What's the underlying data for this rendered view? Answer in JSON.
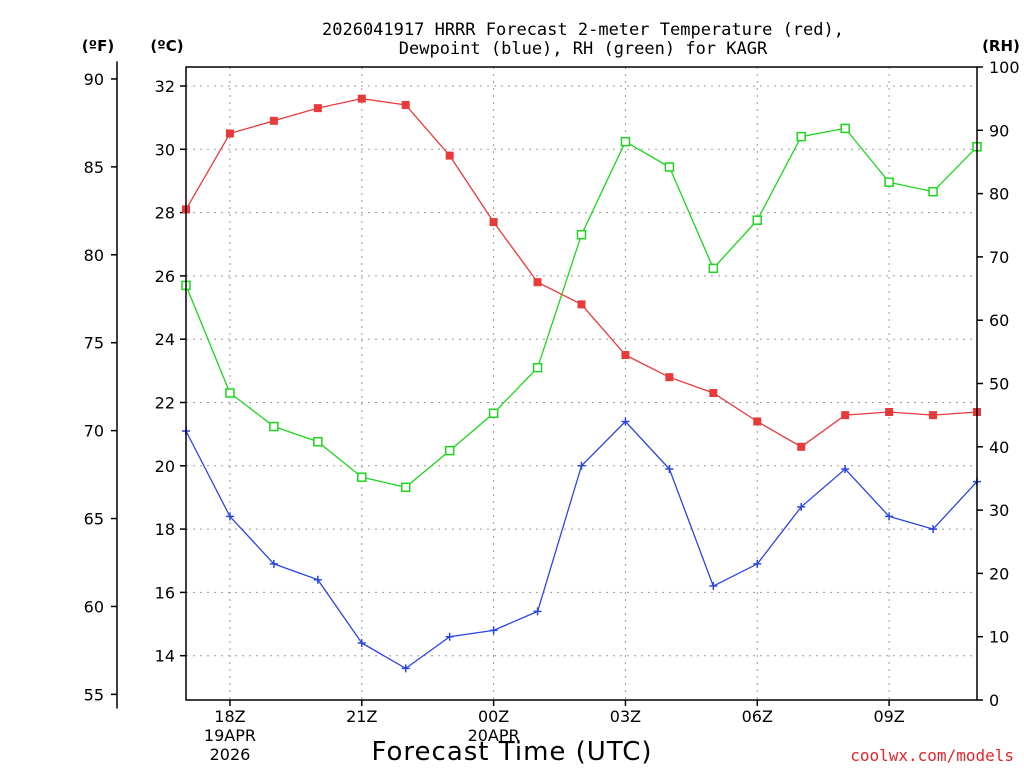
{
  "chart_data": {
    "type": "line",
    "title_line1": "2026041917 HRRR Forecast 2-meter Temperature (red),",
    "title_line2": "Dewpoint (blue), RH (green) for KAGR",
    "unit_f": "(ºF)",
    "unit_c": "(ºC)",
    "unit_rh": "(RH)",
    "xlabel": "Forecast Time (UTC)",
    "credit": "coolwx.com/models",
    "x_hours": [
      17,
      18,
      19,
      20,
      21,
      22,
      23,
      24,
      25,
      26,
      27,
      28,
      29,
      30,
      31,
      32,
      33,
      34,
      35
    ],
    "x_range": [
      17,
      35
    ],
    "x_ticks": [
      {
        "hour": 18,
        "label": "18Z",
        "label2": "19APR",
        "label3": "2026"
      },
      {
        "hour": 21,
        "label": "21Z"
      },
      {
        "hour": 24,
        "label": "00Z",
        "label2": "20APR"
      },
      {
        "hour": 27,
        "label": "03Z"
      },
      {
        "hour": 30,
        "label": "06Z"
      },
      {
        "hour": 33,
        "label": "09Z"
      }
    ],
    "c_range": [
      12.6,
      32.6
    ],
    "c_ticks": [
      "14",
      "16",
      "18",
      "20",
      "22",
      "24",
      "26",
      "28",
      "30",
      "32"
    ],
    "f_ticks": [
      "55",
      "60",
      "65",
      "70",
      "75",
      "80",
      "85",
      "90"
    ],
    "rh_range": [
      0,
      100
    ],
    "rh_ticks": [
      "0",
      "10",
      "20",
      "30",
      "40",
      "50",
      "60",
      "70",
      "80",
      "90",
      "100"
    ],
    "grid": true,
    "series": [
      {
        "name": "Temperature",
        "axis": "C",
        "color": "#e83a3a",
        "marker": "square-filled",
        "values": [
          28.1,
          30.5,
          30.9,
          31.3,
          31.6,
          31.4,
          29.8,
          27.7,
          25.8,
          25.1,
          23.5,
          22.8,
          22.3,
          21.4,
          20.6,
          21.6,
          21.7,
          21.6,
          21.7
        ]
      },
      {
        "name": "Dewpoint",
        "axis": "C",
        "color": "#2b46e0",
        "marker": "plus",
        "values": [
          21.1,
          18.4,
          16.9,
          16.4,
          14.4,
          13.6,
          14.6,
          14.8,
          15.4,
          20.0,
          21.4,
          19.9,
          16.2,
          16.9,
          18.7,
          19.9,
          18.4,
          18.0,
          19.5
        ]
      },
      {
        "name": "RH",
        "axis": "RH",
        "color": "#1ed41e",
        "marker": "square-open",
        "values": [
          65.5,
          48.5,
          43.2,
          40.8,
          35.2,
          33.6,
          39.4,
          45.3,
          52.5,
          73.5,
          88.2,
          84.2,
          68.2,
          75.8,
          89.0,
          90.3,
          81.8,
          80.3,
          87.4
        ]
      }
    ]
  }
}
